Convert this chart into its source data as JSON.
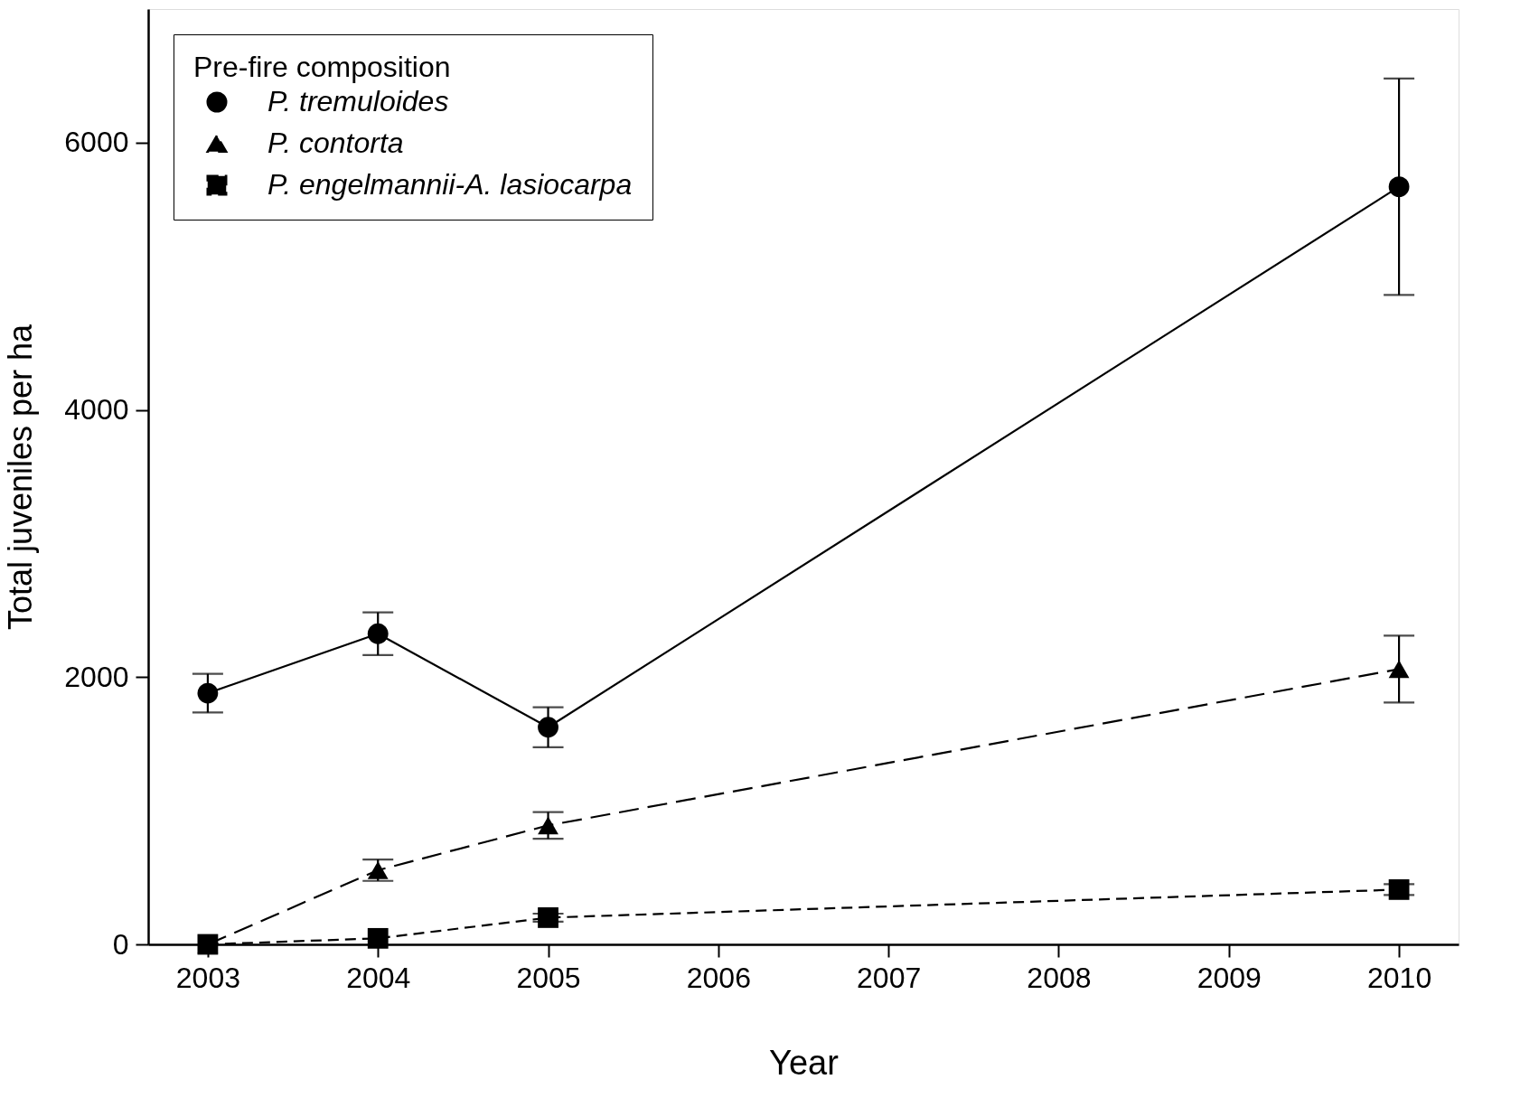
{
  "chart_data": {
    "type": "line",
    "xlabel": "Year",
    "ylabel": "Total juveniles per ha",
    "legend_title": "Pre-fire composition",
    "x": [
      2003,
      2004,
      2005,
      2010
    ],
    "series": [
      {
        "name": "P. tremuloides",
        "color": "#000000",
        "marker": "circle",
        "line_style": "solid",
        "values": [
          1880,
          2325,
          1625,
          5670
        ],
        "errors": [
          145,
          160,
          150,
          810
        ]
      },
      {
        "name": "P. contorta",
        "color": "#000000",
        "marker": "triangle",
        "line_style": "dashed",
        "values": [
          0,
          555,
          890,
          2060
        ],
        "errors": [
          null,
          80,
          100,
          250
        ]
      },
      {
        "name": "P. engelmannii-A. lasiocarpa",
        "color": "#000000",
        "marker": "square",
        "line_style": "dashed",
        "values": [
          0,
          45,
          200,
          410
        ],
        "errors": [
          null,
          null,
          30,
          40
        ]
      }
    ],
    "xlim": [
      2002.65,
      2010.35
    ],
    "xticks": [
      2003,
      2004,
      2005,
      2006,
      2007,
      2008,
      2009,
      2010
    ],
    "ylim": [
      0,
      7000
    ],
    "yticks": [
      0,
      2000,
      4000,
      6000
    ],
    "grid": false,
    "legend": "top left"
  }
}
